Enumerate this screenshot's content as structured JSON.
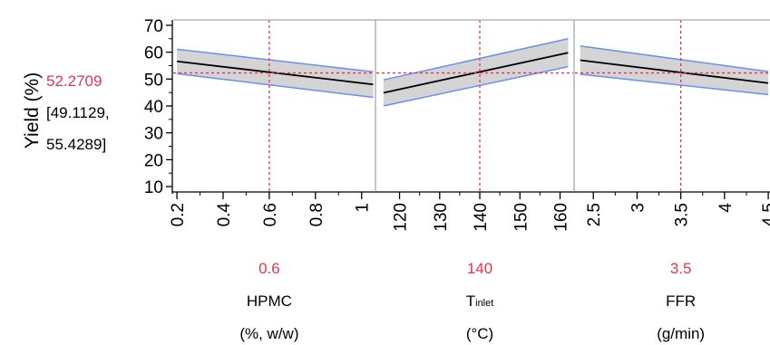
{
  "colors": {
    "prediction_line": "#000000",
    "ci_band_fill": "#d4d4d4",
    "ci_band_edge": "#6b8ff0",
    "current_marker": "#e0364f",
    "frame": "#a8a8a8"
  },
  "readout": {
    "predicted": "52.2709",
    "ci_low": "[49.1129,",
    "ci_high": "55.4289]"
  },
  "chart_data": {
    "type": "line",
    "chart_kind": "prediction profiler",
    "ylabel": "Yield (%)",
    "ylim": [
      8,
      72
    ],
    "y_ticks": [
      10,
      20,
      30,
      40,
      50,
      60,
      70
    ],
    "y_tick_labels": [
      "10",
      "20",
      "30",
      "40",
      "50",
      "60",
      "70"
    ],
    "current_prediction": 52.2709,
    "grid": false,
    "panels": [
      {
        "factor": "HPMC",
        "subscript": "",
        "unit": "(%, w/w)",
        "current_value": 0.6,
        "current_label": "0.6",
        "xlim": [
          0.18,
          1.06
        ],
        "x_ticks": [
          0.2,
          0.4,
          0.6,
          0.8,
          1
        ],
        "x_tick_labels": [
          "0.2",
          "0.4",
          "0.6",
          "0.8",
          "1"
        ],
        "x": [
          0.2,
          1.05
        ],
        "prediction": [
          56.6,
          48.0
        ],
        "ci_lower": [
          52.0,
          43.2
        ],
        "ci_upper": [
          61.1,
          52.7
        ]
      },
      {
        "factor": "T",
        "subscript": "inlet",
        "unit": "(°C)",
        "current_value": 140,
        "current_label": "140",
        "xlim": [
          114,
          163.5
        ],
        "x_ticks": [
          120,
          130,
          140,
          150,
          160
        ],
        "x_tick_labels": [
          "120",
          "130",
          "140",
          "150",
          "160"
        ],
        "x": [
          116,
          162
        ],
        "prediction": [
          44.9,
          59.8
        ],
        "ci_lower": [
          40.0,
          54.6
        ],
        "ci_upper": [
          49.7,
          65.0
        ]
      },
      {
        "factor": "FFR",
        "subscript": "",
        "unit": "(g/min)",
        "current_value": 3.5,
        "current_label": "3.5",
        "xlim": [
          2.28,
          4.52
        ],
        "x_ticks": [
          2.5,
          3,
          3.5,
          4,
          4.5
        ],
        "x_tick_labels": [
          "2.5",
          "3",
          "3.5",
          "4",
          "4.5"
        ],
        "x": [
          2.35,
          4.5
        ],
        "prediction": [
          57.0,
          48.5
        ],
        "ci_lower": [
          51.8,
          44.2
        ],
        "ci_upper": [
          62.3,
          52.8
        ]
      }
    ]
  }
}
